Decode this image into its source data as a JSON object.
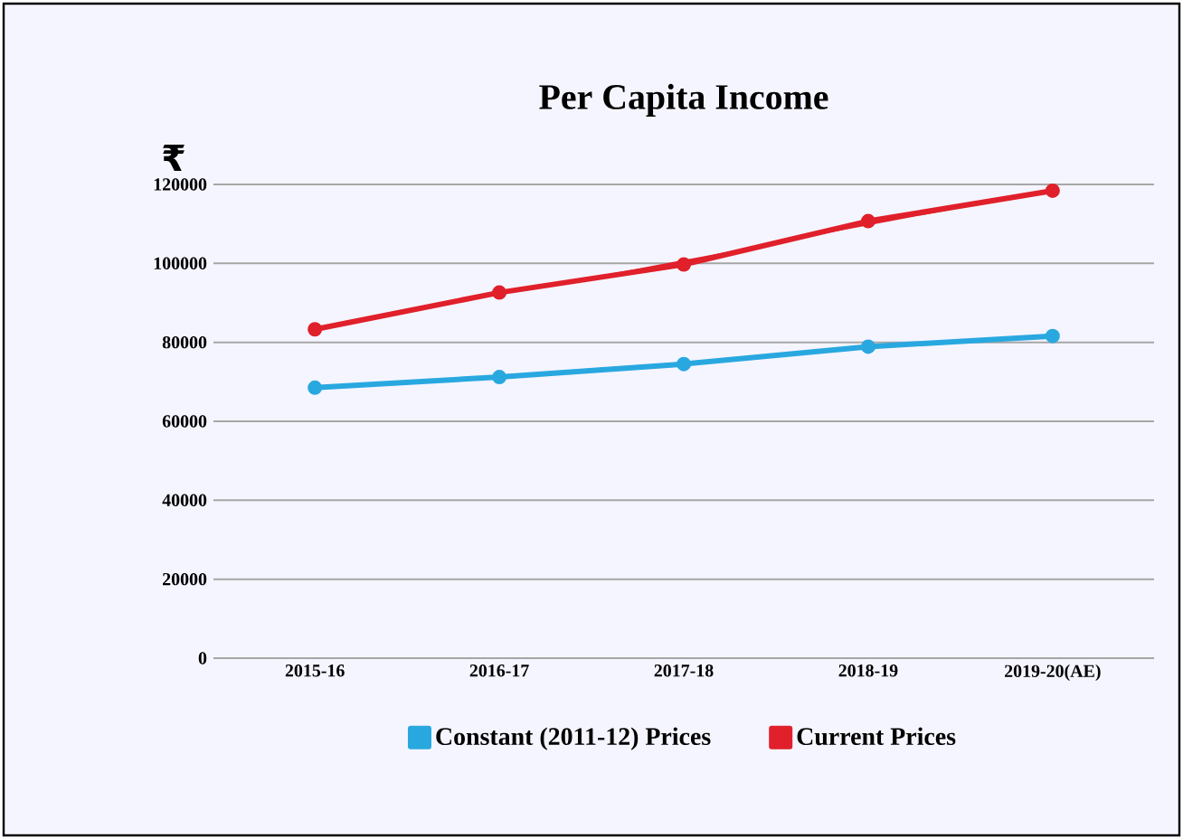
{
  "chart_data": {
    "type": "line",
    "title": "Per Capita Income",
    "ylabel": "₹",
    "categories": [
      "2015-16",
      "2016-17",
      "2017-18",
      "2018-19",
      "2019-20(AE)"
    ],
    "series": [
      {
        "name": "Constant (2011-12) Prices",
        "color": "#29a8e0",
        "values": [
          68500,
          71200,
          74500,
          78900,
          81600
        ]
      },
      {
        "name": "Current Prices",
        "color": "#e0202a",
        "values": [
          83300,
          92600,
          99700,
          110700,
          118400
        ]
      }
    ],
    "ylim": [
      0,
      120000
    ],
    "yticks": [
      0,
      20000,
      40000,
      60000,
      80000,
      100000,
      120000
    ],
    "grid": "y",
    "legend": "bottom",
    "marker": "circle",
    "line_style": "solid"
  }
}
